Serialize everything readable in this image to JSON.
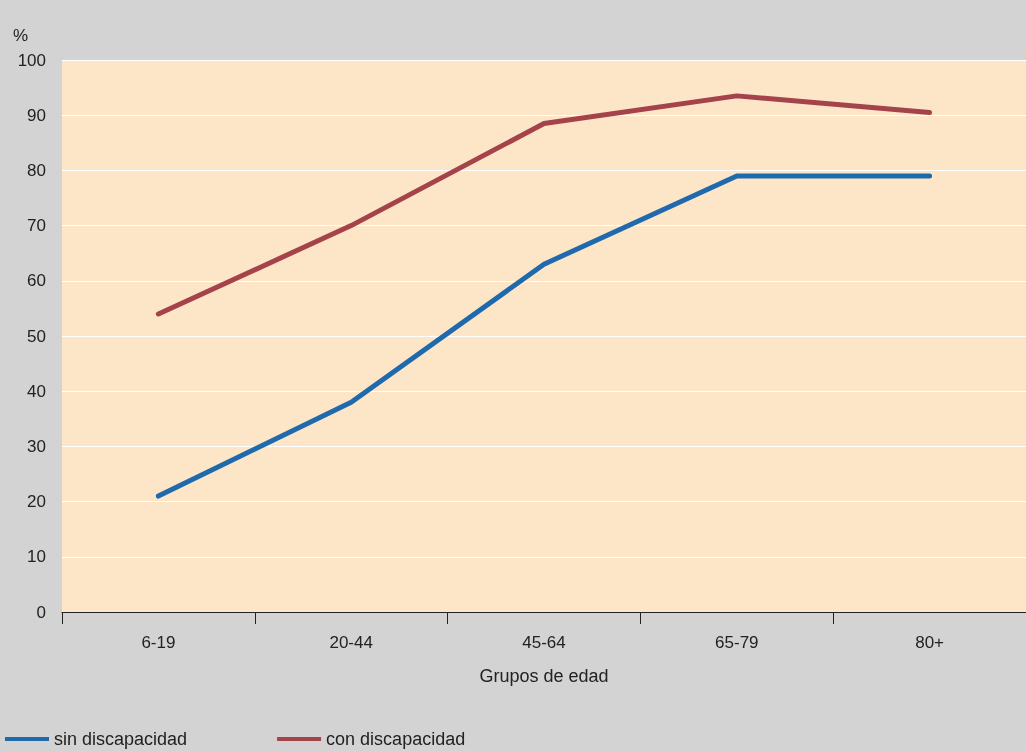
{
  "chart_data": {
    "type": "line",
    "ylabel": "%",
    "xlabel": "Grupos de edad",
    "categories": [
      "6-19",
      "20-44",
      "45-64",
      "65-79",
      "80+"
    ],
    "series": [
      {
        "name": "sin discapacidad",
        "color": "#1f6aad",
        "values": [
          21,
          38,
          63,
          79,
          79
        ]
      },
      {
        "name": "con discapacidad",
        "color": "#a5434a",
        "values": [
          54,
          70,
          88.5,
          93.5,
          90.5
        ]
      }
    ],
    "ylim": [
      0,
      100
    ],
    "yticks": [
      0,
      10,
      20,
      30,
      40,
      50,
      60,
      70,
      80,
      90,
      100
    ],
    "grid": "y",
    "legend": "bottom left",
    "marker": "none",
    "line_style": "solid"
  }
}
